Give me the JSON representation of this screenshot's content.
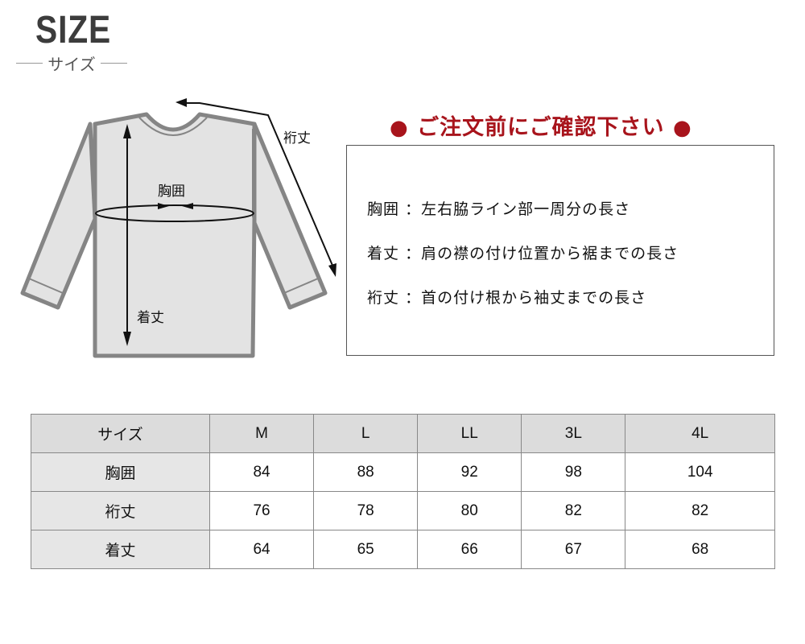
{
  "header": {
    "logo": "SIZE",
    "subtitle": "サイズ"
  },
  "diagram": {
    "labels": {
      "chest": "胸囲",
      "sleeve": "裄丈",
      "length": "着丈"
    }
  },
  "notice": {
    "title": "ご注文前にご確認下さい",
    "dot": "●",
    "color": "#a8141c"
  },
  "definitions": [
    {
      "term": "胸囲",
      "sep": "：",
      "text": "左右脇ライン部一周分の長さ"
    },
    {
      "term": "着丈",
      "sep": "：",
      "text": "肩の襟の付け位置から裾までの長さ"
    },
    {
      "term": "裄丈",
      "sep": "：",
      "text": "首の付け根から袖丈までの長さ"
    }
  ],
  "table": {
    "headers": [
      "サイズ",
      "M",
      "L",
      "LL",
      "3L",
      "4L"
    ],
    "rows": [
      {
        "label": "胸囲",
        "values": [
          "84",
          "88",
          "92",
          "98",
          "104"
        ]
      },
      {
        "label": "裄丈",
        "values": [
          "76",
          "78",
          "80",
          "82",
          "82"
        ]
      },
      {
        "label": "着丈",
        "values": [
          "64",
          "65",
          "66",
          "67",
          "68"
        ]
      }
    ]
  }
}
